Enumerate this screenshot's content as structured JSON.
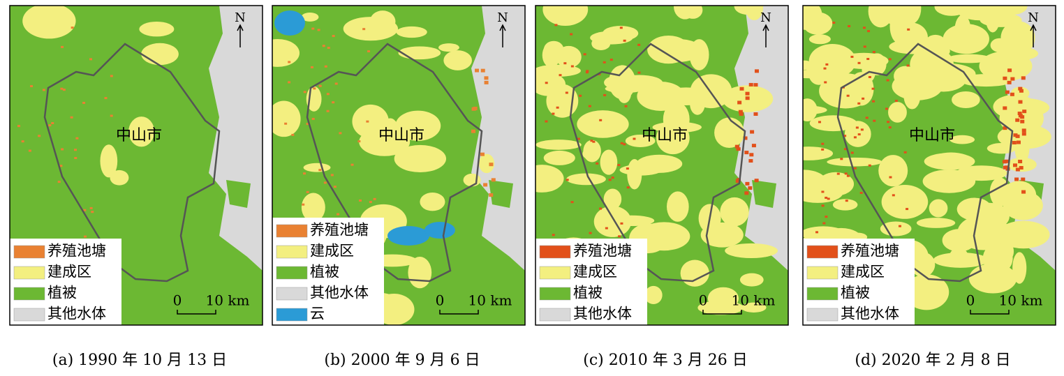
{
  "panels": [
    {
      "city": "中山市",
      "north": "N",
      "scale": {
        "start": "0",
        "end": "10 km"
      },
      "legend": [
        {
          "label": "养殖池塘",
          "color": "#e98132"
        },
        {
          "label": "建成区",
          "color": "#f3ef80"
        },
        {
          "label": "植被",
          "color": "#6cb833"
        },
        {
          "label": "其他水体",
          "color": "#d9d9d9"
        }
      ],
      "caption": "(a) 1990 年 10 月 13 日"
    },
    {
      "city": "中山市",
      "north": "N",
      "scale": {
        "start": "0",
        "end": "10 km"
      },
      "legend": [
        {
          "label": "养殖池塘",
          "color": "#e98132"
        },
        {
          "label": "建成区",
          "color": "#f3ef80"
        },
        {
          "label": "植被",
          "color": "#6cb833"
        },
        {
          "label": "其他水体",
          "color": "#d9d9d9"
        },
        {
          "label": "云",
          "color": "#2b9bd6"
        }
      ],
      "caption": "(b) 2000 年 9 月 6 日"
    },
    {
      "city": "中山市",
      "north": "N",
      "scale": {
        "start": "0",
        "end": "10 km"
      },
      "legend": [
        {
          "label": "养殖池塘",
          "color": "#e2501a"
        },
        {
          "label": "建成区",
          "color": "#f3ef80"
        },
        {
          "label": "植被",
          "color": "#6cb833"
        },
        {
          "label": "其他水体",
          "color": "#d9d9d9"
        }
      ],
      "caption": "(c) 2010 年 3 月 26 日"
    },
    {
      "city": "中山市",
      "north": "N",
      "scale": {
        "start": "0",
        "end": "10 km"
      },
      "legend": [
        {
          "label": "养殖池塘",
          "color": "#e2501a"
        },
        {
          "label": "建成区",
          "color": "#f3ef80"
        },
        {
          "label": "植被",
          "color": "#6cb833"
        },
        {
          "label": "其他水体",
          "color": "#d9d9d9"
        }
      ],
      "caption": "(d) 2020 年 2 月 8 日"
    }
  ]
}
